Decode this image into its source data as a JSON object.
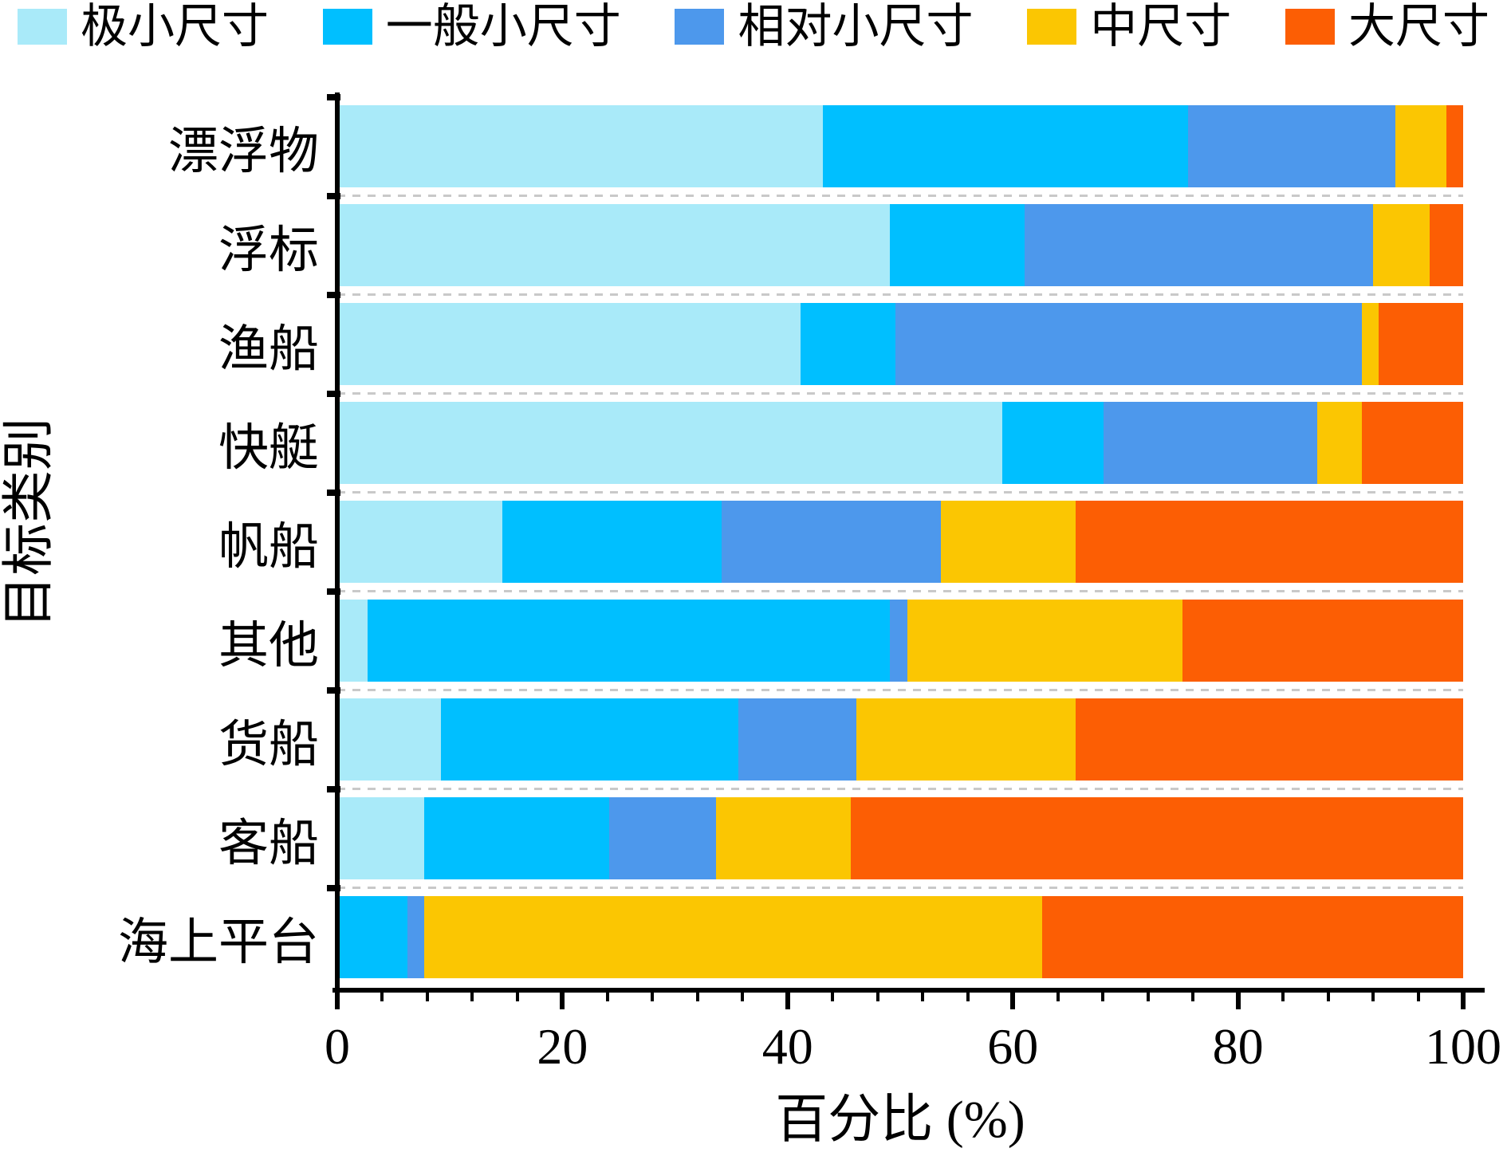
{
  "legend": {
    "items": [
      {
        "label": "极小尺寸",
        "color": "#A9EAF9"
      },
      {
        "label": "一般小尺寸",
        "color": "#00BFFF"
      },
      {
        "label": "相对小尺寸",
        "color": "#4D98EC"
      },
      {
        "label": "中尺寸",
        "color": "#FBC602"
      },
      {
        "label": "大尺寸",
        "color": "#FC5E04"
      }
    ]
  },
  "chart_data": {
    "type": "bar",
    "orientation": "horizontal_stacked",
    "title": "",
    "xlabel": "百分比 (%)",
    "ylabel": "目标类别",
    "xlim": [
      0,
      100
    ],
    "x_major_ticks": [
      0,
      20,
      40,
      60,
      80,
      100
    ],
    "x_minor_tick_step": 4,
    "legend_position": "top",
    "grid": "dashed horizontal separators between category rows",
    "categories": [
      "漂浮物",
      "浮标",
      "渔船",
      "快艇",
      "帆船",
      "其他",
      "货船",
      "客船",
      "海上平台"
    ],
    "series": [
      {
        "name": "极小尺寸",
        "color": "#A9EAF9",
        "values": [
          43,
          49,
          41,
          59,
          14.5,
          2.5,
          9,
          7.5,
          0
        ]
      },
      {
        "name": "一般小尺寸",
        "color": "#00BFFF",
        "values": [
          32.5,
          12,
          8.5,
          9,
          19.5,
          46.5,
          26.5,
          16.5,
          6
        ]
      },
      {
        "name": "相对小尺寸",
        "color": "#4D98EC",
        "values": [
          18.5,
          31,
          41.5,
          19,
          19.5,
          1.5,
          10.5,
          9.5,
          1.5
        ]
      },
      {
        "name": "中尺寸",
        "color": "#FBC602",
        "values": [
          4.5,
          5,
          1.5,
          4,
          12,
          24.5,
          19.5,
          12,
          55
        ]
      },
      {
        "name": "大尺寸",
        "color": "#FC5E04",
        "values": [
          1.5,
          3,
          7.5,
          9,
          34.5,
          25,
          34.5,
          54.5,
          37.5
        ]
      }
    ]
  }
}
